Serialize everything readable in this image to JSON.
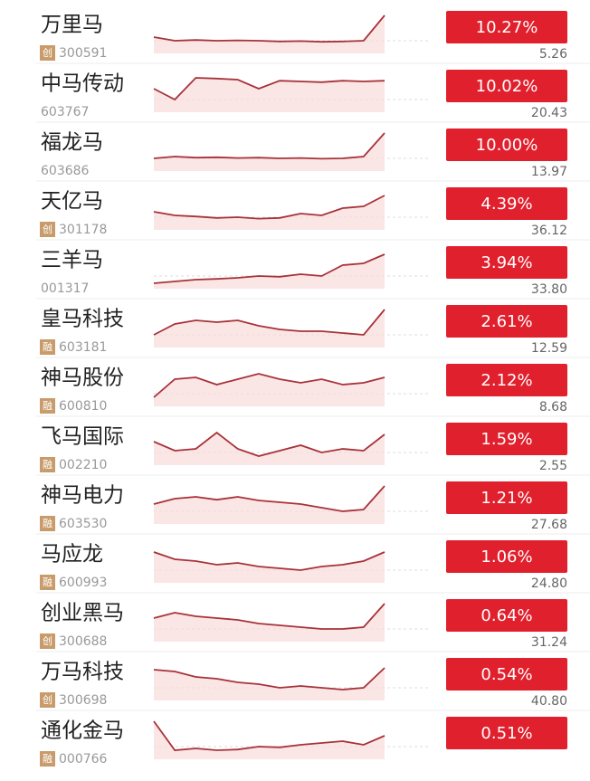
{
  "stocks": [
    {
      "name": "万里马",
      "badge": "创",
      "code": "300591",
      "change": "10.27%",
      "price": "5.26",
      "trend": [
        40,
        30,
        32,
        30,
        31,
        30,
        28,
        29,
        27,
        28,
        30,
        100
      ]
    },
    {
      "name": "中马传动",
      "code": "603767",
      "change": "10.02%",
      "price": "20.43",
      "trend": [
        60,
        30,
        90,
        88,
        85,
        60,
        82,
        80,
        78,
        82,
        80,
        82
      ]
    },
    {
      "name": "福龙马",
      "code": "603686",
      "change": "10.00%",
      "price": "13.97",
      "trend": [
        30,
        35,
        32,
        33,
        31,
        32,
        30,
        31,
        29,
        30,
        35,
        100
      ]
    },
    {
      "name": "天亿马",
      "badge": "创",
      "code": "301178",
      "change": "4.39%",
      "price": "36.12",
      "trend": [
        45,
        35,
        32,
        28,
        30,
        26,
        28,
        40,
        35,
        55,
        60,
        90
      ]
    },
    {
      "name": "三羊马",
      "code": "001317",
      "change": "3.94%",
      "price": "33.80",
      "trend": [
        10,
        15,
        20,
        22,
        25,
        30,
        28,
        35,
        30,
        60,
        65,
        90
      ]
    },
    {
      "name": "皇马科技",
      "badge": "融",
      "code": "603181",
      "change": "2.61%",
      "price": "12.59",
      "trend": [
        30,
        60,
        70,
        65,
        70,
        55,
        45,
        40,
        40,
        35,
        30,
        100
      ]
    },
    {
      "name": "神马股份",
      "badge": "融",
      "code": "600810",
      "change": "2.12%",
      "price": "8.68",
      "trend": [
        20,
        70,
        75,
        55,
        70,
        85,
        70,
        60,
        70,
        55,
        60,
        75
      ]
    },
    {
      "name": "飞马国际",
      "badge": "融",
      "code": "002210",
      "change": "1.59%",
      "price": "2.55",
      "trend": [
        60,
        35,
        40,
        85,
        40,
        20,
        35,
        50,
        30,
        40,
        35,
        80
      ]
    },
    {
      "name": "神马电力",
      "badge": "融",
      "code": "603530",
      "change": "1.21%",
      "price": "27.68",
      "trend": [
        50,
        65,
        70,
        62,
        70,
        60,
        55,
        50,
        40,
        30,
        35,
        100
      ]
    },
    {
      "name": "马应龙",
      "badge": "融",
      "code": "600993",
      "change": "1.06%",
      "price": "24.80",
      "trend": [
        80,
        60,
        55,
        45,
        50,
        40,
        35,
        30,
        40,
        45,
        55,
        80
      ]
    },
    {
      "name": "创业黑马",
      "badge": "创",
      "code": "300688",
      "change": "0.64%",
      "price": "31.24",
      "trend": [
        60,
        75,
        65,
        60,
        55,
        45,
        40,
        35,
        30,
        30,
        35,
        100
      ]
    },
    {
      "name": "万马科技",
      "badge": "创",
      "code": "300698",
      "change": "0.54%",
      "price": "40.80",
      "trend": [
        80,
        75,
        60,
        55,
        45,
        40,
        30,
        35,
        30,
        25,
        30,
        85
      ]
    },
    {
      "name": "通化金马",
      "badge": "融",
      "code": "000766",
      "change": "0.51%",
      "price": "",
      "trend": [
        100,
        20,
        25,
        20,
        22,
        30,
        28,
        35,
        40,
        45,
        35,
        60
      ]
    }
  ]
}
